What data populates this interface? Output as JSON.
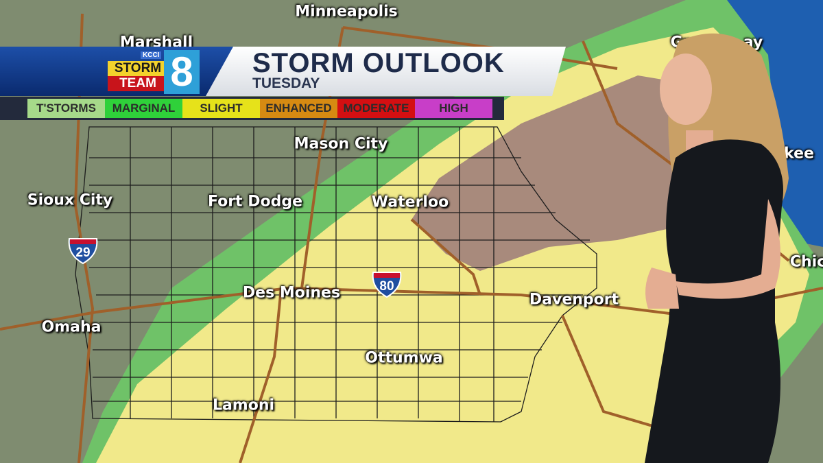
{
  "header": {
    "title": "STORM OUTLOOK",
    "subtitle": "TUESDAY",
    "logo": {
      "station": "KCCI",
      "line1": "STORM",
      "line2": "TEAM",
      "number": "8"
    }
  },
  "legend": [
    {
      "label": "T'STORMS",
      "color": "#a6d98a"
    },
    {
      "label": "MARGINAL",
      "color": "#2fd13a"
    },
    {
      "label": "SLIGHT",
      "color": "#e6e21a"
    },
    {
      "label": "ENHANCED",
      "color": "#d68a12"
    },
    {
      "label": "MODERATE",
      "color": "#d40f12"
    },
    {
      "label": "HIGH",
      "color": "#c83ec8"
    }
  ],
  "map_colors": {
    "marginal": "#6fc268",
    "slight": "#f1e98a",
    "enhanced": "#a88a7c",
    "land": "#7d8a6e",
    "lake": "#1e5fb0",
    "roads": "#a0602a"
  },
  "cities": [
    {
      "name": "Minneapolis"
    },
    {
      "name": "Marshall"
    },
    {
      "name": "Gr"
    },
    {
      "name": "ay"
    },
    {
      "name": "Mason City"
    },
    {
      "name": "Sioux City"
    },
    {
      "name": "Fort Dodge"
    },
    {
      "name": "Waterloo"
    },
    {
      "name": "kee"
    },
    {
      "name": "Des Moines"
    },
    {
      "name": "Davenport"
    },
    {
      "name": "Chic"
    },
    {
      "name": "Omaha"
    },
    {
      "name": "Ottumwa"
    },
    {
      "name": "Lamoni"
    }
  ],
  "interstates": [
    {
      "number": "29"
    },
    {
      "number": "80"
    }
  ]
}
